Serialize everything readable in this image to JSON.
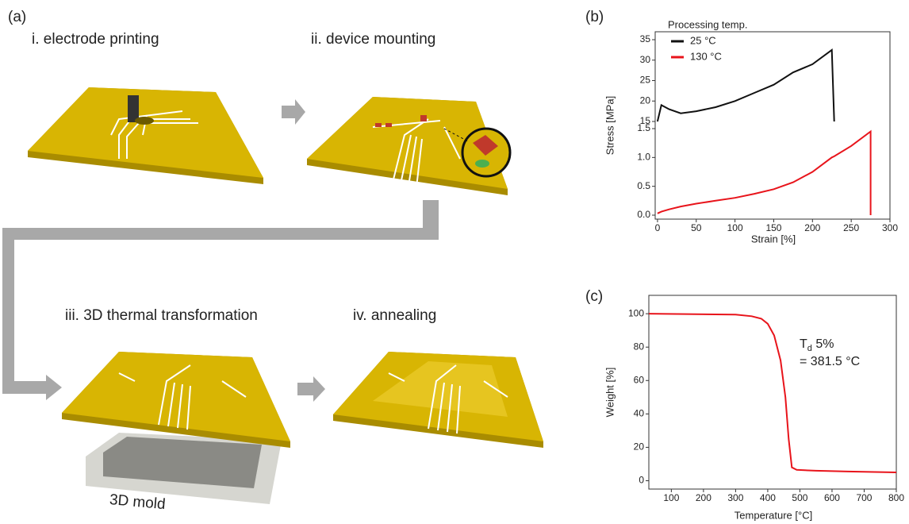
{
  "panel_a": {
    "panel_label": "(a)",
    "steps": [
      "i. electrode printing",
      "ii. device mounting",
      "iii. 3D thermal transformation",
      "iv. annealing"
    ],
    "mold_label": "3D mold"
  },
  "chart_data": [
    {
      "type": "line",
      "panel_label": "(b)",
      "x_label": "Strain [%]",
      "y_label": "Stress [MPa]",
      "legend_title": "Processing temp.",
      "legend": "top-left",
      "x": [
        0,
        5,
        15,
        30,
        50,
        75,
        100,
        125,
        150,
        175,
        200,
        225,
        228,
        250,
        275,
        275
      ],
      "series": [
        {
          "name": "25 °C",
          "color": "#111111",
          "axis": "y2",
          "values": [
            15,
            19,
            18,
            17,
            17.5,
            18.5,
            20,
            22,
            24,
            27,
            29,
            32.5,
            15,
            null,
            null,
            null
          ]
        },
        {
          "name": "130 °C",
          "color": "#e8141b",
          "values": [
            0.03,
            0.06,
            0.1,
            0.15,
            0.2,
            0.25,
            0.3,
            0.37,
            0.45,
            0.57,
            0.75,
            1.0,
            1.02,
            1.2,
            1.45,
            0
          ]
        }
      ],
      "xlim": [
        -3,
        300
      ],
      "xticks": [
        0,
        50,
        100,
        150,
        200,
        250,
        300
      ],
      "ylim": [
        0,
        1.5
      ],
      "yticks": [
        {
          "value": 0,
          "label": "0.0"
        },
        0.5,
        {
          "value": 1,
          "label": "1.0"
        },
        1.5
      ],
      "y2lim": [
        15,
        35
      ],
      "y2ticks": [
        15,
        20,
        25,
        30,
        35
      ]
    },
    {
      "type": "line",
      "panel_label": "(c)",
      "x_label": "Temperature [°C]",
      "y_label": "Weight [%]",
      "annotation": [
        "T",
        "d",
        " 5%",
        "= 381.5 °C"
      ],
      "x": [
        30,
        300,
        350,
        380,
        400,
        420,
        440,
        455,
        465,
        475,
        490,
        550,
        650,
        800
      ],
      "series": [
        {
          "name": null,
          "color": "#e8141b",
          "values": [
            100,
            99.5,
            98.5,
            97,
            94,
            87,
            72,
            50,
            25,
            8,
            6.5,
            6,
            5.5,
            5
          ]
        }
      ],
      "xlim": [
        30,
        800
      ],
      "xticks": [
        100,
        200,
        300,
        400,
        500,
        600,
        700,
        800
      ],
      "ylim": [
        -5,
        111
      ],
      "yticks": [
        0,
        20,
        40,
        60,
        80,
        100
      ]
    }
  ]
}
